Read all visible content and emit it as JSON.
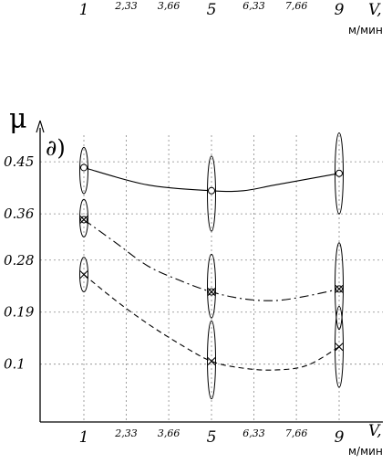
{
  "chart_data": {
    "type": "line",
    "panel_label": "∂)",
    "ylabel": "μ",
    "xlabel": "V,",
    "x_unit": "м/мин",
    "top_x_axis": {
      "tick_labels": [
        "1",
        "2,33",
        "3,66",
        "5",
        "6,33",
        "7,66",
        "9"
      ],
      "axis_label": "V,",
      "unit": "м/мин"
    },
    "x_ticks": [
      1,
      2.33,
      3.66,
      5,
      6.33,
      7.66,
      9
    ],
    "x_tick_labels": [
      "1",
      "2,33",
      "3,66",
      "5",
      "6,33",
      "7,66",
      "9"
    ],
    "y_ticks": [
      0.45,
      0.36,
      0.28,
      0.19,
      0.1
    ],
    "y_tick_labels": [
      "0.45",
      "0.36",
      "0.28",
      "0.19",
      "0.1"
    ],
    "xlim": [
      0,
      9.6
    ],
    "ylim": [
      0,
      0.55
    ],
    "grid": true,
    "series": [
      {
        "marker": "circle",
        "line_style": "solid",
        "x": [
          1,
          5,
          9
        ],
        "y": [
          0.44,
          0.4,
          0.43
        ],
        "curve": [
          [
            1,
            0.44
          ],
          [
            3,
            0.41
          ],
          [
            5,
            0.4
          ],
          [
            6,
            0.4
          ],
          [
            7,
            0.41
          ],
          [
            9,
            0.43
          ]
        ],
        "scatter_range": [
          [
            0.395,
            0.475
          ],
          [
            0.33,
            0.46
          ],
          [
            0.36,
            0.5
          ]
        ]
      },
      {
        "marker": "cross-circle",
        "line_style": "dash-dot",
        "x": [
          1,
          5,
          9
        ],
        "y": [
          0.35,
          0.225,
          0.23
        ],
        "curve": [
          [
            1,
            0.35
          ],
          [
            2,
            0.31
          ],
          [
            3,
            0.27
          ],
          [
            4,
            0.245
          ],
          [
            5,
            0.225
          ],
          [
            6,
            0.213
          ],
          [
            7,
            0.21
          ],
          [
            8,
            0.218
          ],
          [
            9,
            0.23
          ]
        ],
        "scatter_range": [
          [
            0.32,
            0.385
          ],
          [
            0.18,
            0.29
          ],
          [
            0.16,
            0.31
          ]
        ]
      },
      {
        "marker": "cross",
        "line_style": "dashed",
        "x": [
          1,
          5,
          9
        ],
        "y": [
          0.255,
          0.105,
          0.13
        ],
        "curve": [
          [
            1,
            0.255
          ],
          [
            2,
            0.21
          ],
          [
            3,
            0.17
          ],
          [
            4,
            0.135
          ],
          [
            5,
            0.105
          ],
          [
            6,
            0.093
          ],
          [
            7,
            0.09
          ],
          [
            8,
            0.098
          ],
          [
            9,
            0.13
          ]
        ],
        "scatter_range": [
          [
            0.225,
            0.285
          ],
          [
            0.04,
            0.175
          ],
          [
            0.06,
            0.2
          ]
        ]
      }
    ]
  }
}
